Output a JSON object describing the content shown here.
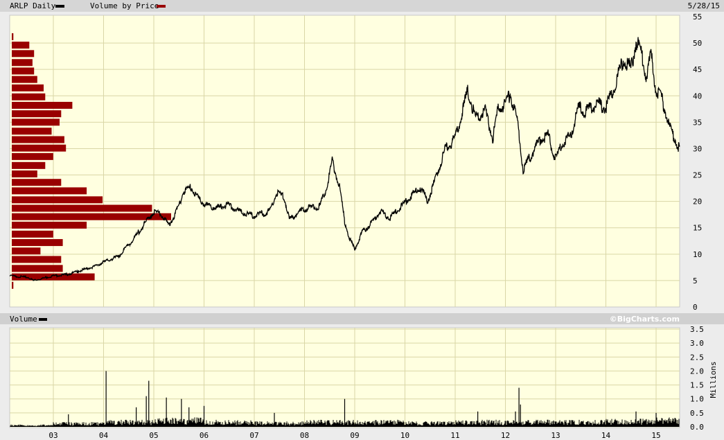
{
  "header": {
    "series_label": "ARLP Daily",
    "vbp_label": "Volume by Price",
    "date": "5/28/15"
  },
  "volume_header": {
    "label": "Volume",
    "brand": "©BigCharts.com"
  },
  "colors": {
    "price_line": "#000000",
    "volume_by_price": "#990000",
    "volume_bars": "#000000",
    "plot_background": "#ffffe0",
    "grid": "#d9d6a6"
  },
  "chart_data": [
    {
      "type": "line",
      "title": "ARLP Daily",
      "xlabel": "",
      "ylabel": "",
      "xlim": [
        2002.13,
        2015.47
      ],
      "ylim": [
        0,
        55
      ],
      "grid": true,
      "x_tick_labels": [
        "03",
        "04",
        "05",
        "06",
        "07",
        "08",
        "09",
        "10",
        "11",
        "12",
        "13",
        "14",
        "15"
      ],
      "y_tick_labels": [
        "0",
        "5",
        "10",
        "15",
        "20",
        "25",
        "30",
        "35",
        "40",
        "45",
        "50",
        "55"
      ],
      "series": [
        {
          "name": "ARLP Daily",
          "points": [
            [
              2002.13,
              5.9
            ],
            [
              2002.5,
              5.6
            ],
            [
              2002.6,
              5.0
            ],
            [
              2003.0,
              5.9
            ],
            [
              2003.3,
              6.2
            ],
            [
              2003.5,
              6.8
            ],
            [
              2003.8,
              7.6
            ],
            [
              2004.0,
              8.5
            ],
            [
              2004.3,
              9.6
            ],
            [
              2004.6,
              12.9
            ],
            [
              2004.8,
              15.5
            ],
            [
              2005.0,
              18.1
            ],
            [
              2005.15,
              17.5
            ],
            [
              2005.3,
              15.5
            ],
            [
              2005.45,
              18.0
            ],
            [
              2005.6,
              22.0
            ],
            [
              2005.75,
              22.7
            ],
            [
              2005.9,
              20.3
            ],
            [
              2006.1,
              19.0
            ],
            [
              2006.3,
              18.8
            ],
            [
              2006.45,
              19.4
            ],
            [
              2006.7,
              18.1
            ],
            [
              2007.0,
              17.2
            ],
            [
              2007.3,
              18.1
            ],
            [
              2007.45,
              21.7
            ],
            [
              2007.6,
              20.7
            ],
            [
              2007.7,
              16.4
            ],
            [
              2007.9,
              18.1
            ],
            [
              2008.1,
              18.8
            ],
            [
              2008.3,
              19.0
            ],
            [
              2008.45,
              22.7
            ],
            [
              2008.55,
              27.7
            ],
            [
              2008.7,
              22.7
            ],
            [
              2008.8,
              16.1
            ],
            [
              2008.9,
              12.9
            ],
            [
              2009.0,
              10.9
            ],
            [
              2009.15,
              14.2
            ],
            [
              2009.3,
              15.5
            ],
            [
              2009.5,
              18.1
            ],
            [
              2009.7,
              16.8
            ],
            [
              2009.9,
              18.8
            ],
            [
              2010.1,
              20.7
            ],
            [
              2010.3,
              22.7
            ],
            [
              2010.45,
              20.1
            ],
            [
              2010.6,
              24.0
            ],
            [
              2010.8,
              29.9
            ],
            [
              2011.0,
              31.9
            ],
            [
              2011.15,
              37.1
            ],
            [
              2011.25,
              41.0
            ],
            [
              2011.4,
              35.8
            ],
            [
              2011.6,
              37.1
            ],
            [
              2011.75,
              31.9
            ],
            [
              2011.85,
              37.4
            ],
            [
              2012.0,
              38.5
            ],
            [
              2012.1,
              40.4
            ],
            [
              2012.25,
              34.5
            ],
            [
              2012.35,
              26.0
            ],
            [
              2012.5,
              28.6
            ],
            [
              2012.7,
              31.9
            ],
            [
              2012.85,
              32.5
            ],
            [
              2013.0,
              28.0
            ],
            [
              2013.15,
              31.2
            ],
            [
              2013.3,
              32.5
            ],
            [
              2013.45,
              37.8
            ],
            [
              2013.6,
              37.0
            ],
            [
              2013.8,
              38.5
            ],
            [
              2014.0,
              37.8
            ],
            [
              2014.2,
              42.4
            ],
            [
              2014.35,
              47.0
            ],
            [
              2014.5,
              45.0
            ],
            [
              2014.6,
              50.3
            ],
            [
              2014.7,
              48.3
            ],
            [
              2014.8,
              43.7
            ],
            [
              2014.9,
              47.6
            ],
            [
              2015.0,
              41.0
            ],
            [
              2015.1,
              39.8
            ],
            [
              2015.2,
              36.5
            ],
            [
              2015.3,
              33.2
            ],
            [
              2015.47,
              29.9
            ]
          ]
        }
      ],
      "volume_by_price": {
        "price_levels": [
          51.2,
          49.6,
          48.0,
          46.3,
          44.7,
          43.1,
          41.5,
          39.8,
          38.2,
          36.6,
          35.0,
          33.3,
          31.7,
          30.1,
          28.5,
          26.8,
          25.2,
          23.6,
          22.0,
          20.3,
          18.7,
          17.1,
          15.5,
          13.8,
          12.2,
          10.6,
          9.0,
          7.3,
          5.7,
          4.1
        ],
        "relative_volume": [
          1,
          11,
          14,
          13,
          14,
          16,
          20,
          21,
          38,
          31,
          30,
          25,
          33,
          34,
          26,
          21,
          16,
          31,
          47,
          57,
          88,
          100,
          47,
          26,
          32,
          18,
          31,
          32,
          52,
          1
        ]
      }
    },
    {
      "type": "bar",
      "title": "Volume",
      "ylabel": "Millions",
      "xlim": [
        2002.13,
        2015.47
      ],
      "ylim": [
        0,
        3.5
      ],
      "grid": true,
      "x_tick_labels": [
        "03",
        "04",
        "05",
        "06",
        "07",
        "08",
        "09",
        "10",
        "11",
        "12",
        "13",
        "14",
        "15"
      ],
      "y_tick_labels": [
        "0.0",
        "0.5",
        "1.0",
        "1.5",
        "2.0",
        "2.5",
        "3.0",
        "3.5"
      ],
      "typical_volume_by_year": [
        [
          2002,
          0.05
        ],
        [
          2003,
          0.1
        ],
        [
          2004,
          0.15
        ],
        [
          2005,
          0.2
        ],
        [
          2006,
          0.15
        ],
        [
          2007,
          0.12
        ],
        [
          2008,
          0.15
        ],
        [
          2009,
          0.15
        ],
        [
          2010,
          0.12
        ],
        [
          2011,
          0.15
        ],
        [
          2012,
          0.15
        ],
        [
          2013,
          0.15
        ],
        [
          2014,
          0.18
        ],
        [
          2015,
          0.2
        ]
      ],
      "notable_volume": [
        [
          2003.3,
          0.45
        ],
        [
          2004.05,
          2.0
        ],
        [
          2004.65,
          0.7
        ],
        [
          2004.85,
          1.1
        ],
        [
          2004.9,
          1.65
        ],
        [
          2005.25,
          1.05
        ],
        [
          2005.55,
          1.0
        ],
        [
          2005.7,
          0.7
        ],
        [
          2006.0,
          0.75
        ],
        [
          2007.4,
          0.5
        ],
        [
          2008.8,
          1.0
        ],
        [
          2011.45,
          0.55
        ],
        [
          2012.2,
          0.55
        ],
        [
          2012.27,
          1.4
        ],
        [
          2012.3,
          0.8
        ],
        [
          2014.6,
          0.55
        ],
        [
          2015.0,
          0.5
        ]
      ]
    }
  ]
}
